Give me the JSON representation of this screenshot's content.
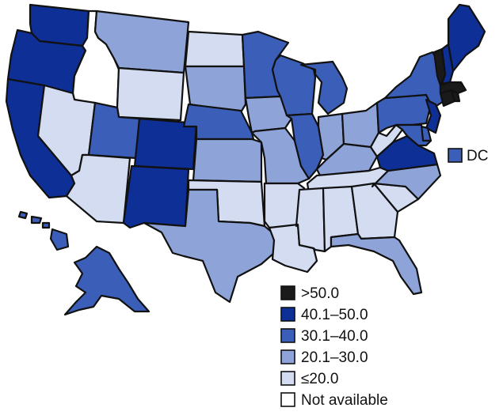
{
  "colors": {
    "gt50": "#1a1a1a",
    "c40_50": "#0d2f96",
    "c30_40": "#3b5fb8",
    "c20_30": "#8ea4d8",
    "le20": "#d4dcf1",
    "na": "#ffffff",
    "stroke": "#111111"
  },
  "dc": {
    "label": "DC",
    "category": "c30_40"
  },
  "legend": [
    {
      "key": "gt50",
      "label": ">50.0"
    },
    {
      "key": "c40_50",
      "label": "40.1–50.0"
    },
    {
      "key": "c30_40",
      "label": "30.1–40.0"
    },
    {
      "key": "c20_30",
      "label": "20.1–30.0"
    },
    {
      "key": "le20",
      "label": "≤20.0"
    },
    {
      "key": "na",
      "label": "Not available"
    }
  ],
  "states": {
    "WA": "c40_50",
    "OR": "c40_50",
    "CA": "c40_50",
    "NV": "le20",
    "ID": "na",
    "MT": "c20_30",
    "WY": "le20",
    "UT": "c30_40",
    "AZ": "le20",
    "CO": "c40_50",
    "NM": "c40_50",
    "ND": "le20",
    "SD": "c20_30",
    "NE": "c30_40",
    "KS": "c20_30",
    "OK": "le20",
    "TX": "c20_30",
    "MN": "c30_40",
    "IA": "c20_30",
    "MO": "c20_30",
    "AR": "le20",
    "LA": "le20",
    "WI": "c30_40",
    "IL": "c30_40",
    "MI": "c30_40",
    "IN": "c20_30",
    "OH": "c20_30",
    "KY": "c20_30",
    "TN": "le20",
    "MS": "le20",
    "AL": "le20",
    "GA": "le20",
    "FL": "c20_30",
    "SC": "le20",
    "NC": "c20_30",
    "VA": "c40_50",
    "WV": "le20",
    "PA": "c30_40",
    "NY": "c30_40",
    "NJ": "c40_50",
    "DE": "c30_40",
    "MD": "c30_40",
    "CT": "gt50",
    "RI": "gt50",
    "MA": "gt50",
    "VT": "gt50",
    "NH": "c40_50",
    "ME": "c40_50",
    "AK": "c30_40",
    "HI": "c30_40"
  }
}
